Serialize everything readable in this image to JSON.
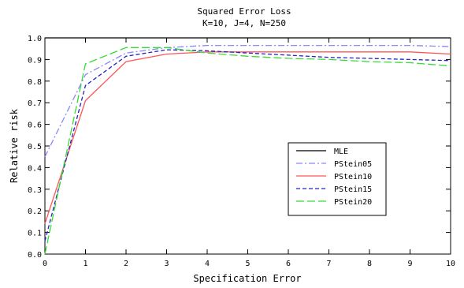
{
  "chart_data": {
    "type": "line",
    "title": "Squared Error Loss",
    "subtitle": "K=10, J=4, N=250",
    "xlabel": "Specification Error",
    "ylabel": "Relative risk",
    "xlim": [
      0,
      10
    ],
    "ylim": [
      0,
      1.0
    ],
    "x_ticks": [
      "0",
      "1",
      "2",
      "3",
      "4",
      "5",
      "6",
      "7",
      "8",
      "9",
      "10"
    ],
    "y_ticks": [
      "0.0",
      "0.1",
      "0.2",
      "0.3",
      "0.4",
      "0.5",
      "0.6",
      "0.7",
      "0.8",
      "0.9",
      "1.0"
    ],
    "grid": false,
    "legend_position": "right",
    "x": [
      0,
      1,
      2,
      3,
      4,
      5,
      6,
      7,
      8,
      9,
      10
    ],
    "series": [
      {
        "name": "MLE",
        "color": "#000000",
        "dash": "solid",
        "values": [
          1.0,
          1.0,
          1.0,
          1.0,
          1.0,
          1.0,
          1.0,
          1.0,
          1.0,
          1.0,
          1.0
        ]
      },
      {
        "name": "PStein05",
        "color": "#8888ff",
        "dash": "dashdot",
        "values": [
          0.45,
          0.83,
          0.93,
          0.955,
          0.965,
          0.965,
          0.965,
          0.965,
          0.965,
          0.965,
          0.96
        ]
      },
      {
        "name": "PStein10",
        "color": "#ff5555",
        "dash": "solid",
        "values": [
          0.14,
          0.71,
          0.89,
          0.925,
          0.935,
          0.935,
          0.935,
          0.935,
          0.935,
          0.935,
          0.925
        ]
      },
      {
        "name": "PStein15",
        "color": "#2222cc",
        "dash": "dashed",
        "values": [
          0.06,
          0.78,
          0.915,
          0.945,
          0.94,
          0.93,
          0.92,
          0.91,
          0.905,
          0.9,
          0.895
        ]
      },
      {
        "name": "PStein20",
        "color": "#33dd33",
        "dash": "longdash",
        "values": [
          0.0,
          0.88,
          0.955,
          0.955,
          0.93,
          0.915,
          0.905,
          0.9,
          0.89,
          0.885,
          0.87
        ]
      }
    ]
  }
}
